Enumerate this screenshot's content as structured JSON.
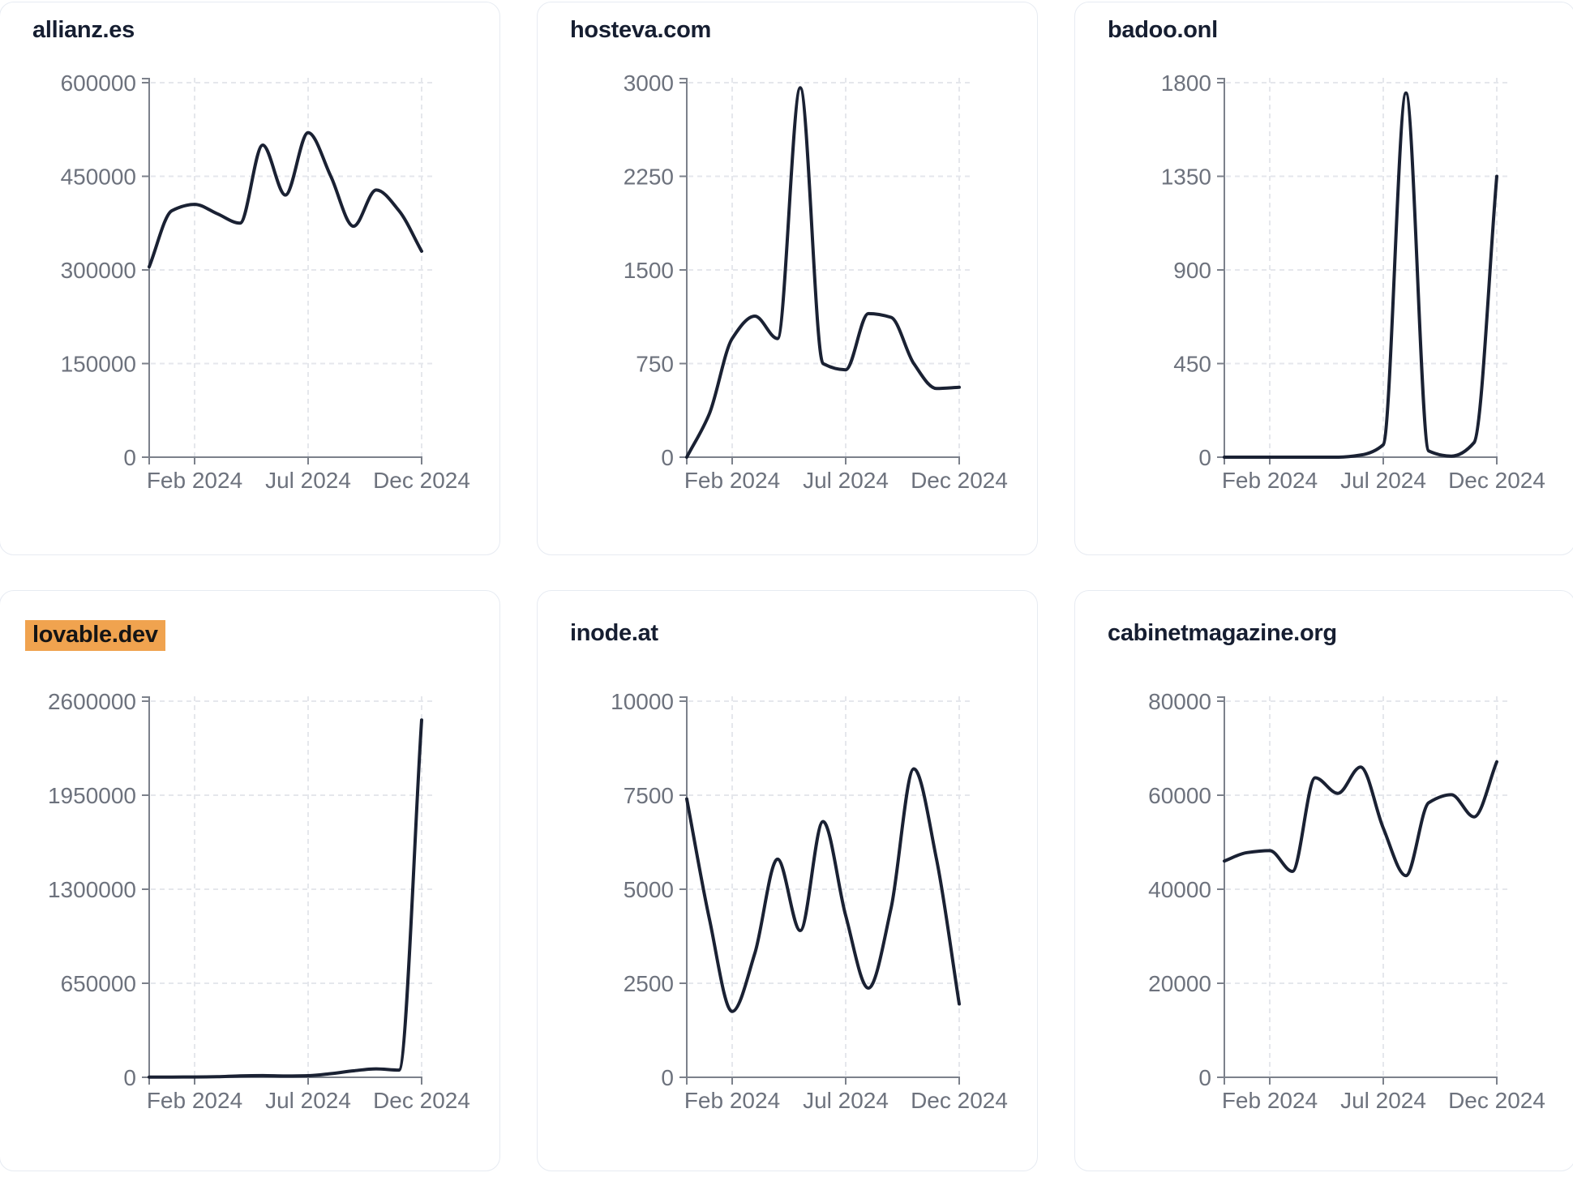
{
  "colors": {
    "line": "#1a2133",
    "title": "#161e31",
    "tick_label": "#6d727d",
    "axis": "#7c818b",
    "gridline": "#e5e7ec",
    "highlight": "#f0a34f",
    "card_border": "#e7ebf2",
    "background": "#ffffff"
  },
  "chart_data": [
    {
      "type": "line",
      "title": "allianz.es",
      "highlighted": false,
      "x": [
        "Dec 2023",
        "Jan 2024",
        "Feb 2024",
        "Mar 2024",
        "Apr 2024",
        "May 2024",
        "Jun 2024",
        "Jul 2024",
        "Aug 2024",
        "Sep 2024",
        "Oct 2024",
        "Nov 2024",
        "Dec 2024"
      ],
      "x_tick_labels": [
        "Feb 2024",
        "Jul 2024",
        "Dec 2024"
      ],
      "x_tick_indices": [
        2,
        7,
        12
      ],
      "y_ticks": [
        0,
        150000,
        300000,
        450000,
        600000
      ],
      "ylim": [
        0,
        600000
      ],
      "grid": true,
      "values": [
        305000,
        395000,
        405000,
        390000,
        375000,
        500000,
        420000,
        520000,
        450000,
        370000,
        428000,
        395000,
        330000
      ]
    },
    {
      "type": "line",
      "title": "hosteva.com",
      "highlighted": false,
      "x": [
        "Dec 2023",
        "Jan 2024",
        "Feb 2024",
        "Mar 2024",
        "Apr 2024",
        "May 2024",
        "Jun 2024",
        "Jul 2024",
        "Aug 2024",
        "Sep 2024",
        "Oct 2024",
        "Nov 2024",
        "Dec 2024"
      ],
      "x_tick_labels": [
        "Feb 2024",
        "Jul 2024",
        "Dec 2024"
      ],
      "x_tick_indices": [
        2,
        7,
        12
      ],
      "y_ticks": [
        0,
        750,
        1500,
        2250,
        3000
      ],
      "ylim": [
        0,
        3000
      ],
      "grid": true,
      "values": [
        0,
        350,
        950,
        1130,
        950,
        2960,
        750,
        700,
        1150,
        1120,
        750,
        550,
        560
      ]
    },
    {
      "type": "line",
      "title": "badoo.onl",
      "highlighted": false,
      "x": [
        "Dec 2023",
        "Jan 2024",
        "Feb 2024",
        "Mar 2024",
        "Apr 2024",
        "May 2024",
        "Jun 2024",
        "Jul 2024",
        "Aug 2024",
        "Sep 2024",
        "Oct 2024",
        "Nov 2024",
        "Dec 2024"
      ],
      "x_tick_labels": [
        "Feb 2024",
        "Jul 2024",
        "Dec 2024"
      ],
      "x_tick_indices": [
        2,
        7,
        12
      ],
      "y_ticks": [
        0,
        450,
        900,
        1350,
        1800
      ],
      "ylim": [
        0,
        1800
      ],
      "grid": true,
      "values": [
        0,
        0,
        0,
        0,
        0,
        0,
        10,
        60,
        1750,
        30,
        5,
        70,
        1350
      ]
    },
    {
      "type": "line",
      "title": "lovable.dev",
      "highlighted": true,
      "x": [
        "Dec 2023",
        "Jan 2024",
        "Feb 2024",
        "Mar 2024",
        "Apr 2024",
        "May 2024",
        "Jun 2024",
        "Jul 2024",
        "Aug 2024",
        "Sep 2024",
        "Oct 2024",
        "Nov 2024",
        "Dec 2024"
      ],
      "x_tick_labels": [
        "Feb 2024",
        "Jul 2024",
        "Dec 2024"
      ],
      "x_tick_indices": [
        2,
        7,
        12
      ],
      "y_ticks": [
        0,
        650000,
        1300000,
        1950000,
        2600000
      ],
      "ylim": [
        0,
        2600000
      ],
      "grid": true,
      "values": [
        1000,
        1500,
        2500,
        4000,
        10000,
        12000,
        9000,
        11000,
        25000,
        45000,
        58000,
        50000,
        2470000
      ]
    },
    {
      "type": "line",
      "title": "inode.at",
      "highlighted": false,
      "x": [
        "Dec 2023",
        "Jan 2024",
        "Feb 2024",
        "Mar 2024",
        "Apr 2024",
        "May 2024",
        "Jun 2024",
        "Jul 2024",
        "Aug 2024",
        "Sep 2024",
        "Oct 2024",
        "Nov 2024",
        "Dec 2024"
      ],
      "x_tick_labels": [
        "Feb 2024",
        "Jul 2024",
        "Dec 2024"
      ],
      "x_tick_indices": [
        2,
        7,
        12
      ],
      "y_ticks": [
        0,
        2500,
        5000,
        7500,
        10000
      ],
      "ylim": [
        0,
        10000
      ],
      "grid": true,
      "values": [
        7400,
        4200,
        1750,
        3300,
        5800,
        3900,
        6800,
        4300,
        2370,
        4500,
        8200,
        5800,
        1950
      ]
    },
    {
      "type": "line",
      "title": "cabinetmagazine.org",
      "highlighted": false,
      "x": [
        "Dec 2023",
        "Jan 2024",
        "Feb 2024",
        "Mar 2024",
        "Apr 2024",
        "May 2024",
        "Jun 2024",
        "Jul 2024",
        "Aug 2024",
        "Sep 2024",
        "Oct 2024",
        "Nov 2024",
        "Dec 2024"
      ],
      "x_tick_labels": [
        "Feb 2024",
        "Jul 2024",
        "Dec 2024"
      ],
      "x_tick_indices": [
        2,
        7,
        12
      ],
      "y_ticks": [
        0,
        20000,
        40000,
        60000,
        80000
      ],
      "ylim": [
        0,
        80000
      ],
      "grid": true,
      "values": [
        46000,
        47800,
        48200,
        43800,
        63700,
        60400,
        66000,
        53000,
        42900,
        58400,
        60100,
        55400,
        67100
      ]
    }
  ]
}
